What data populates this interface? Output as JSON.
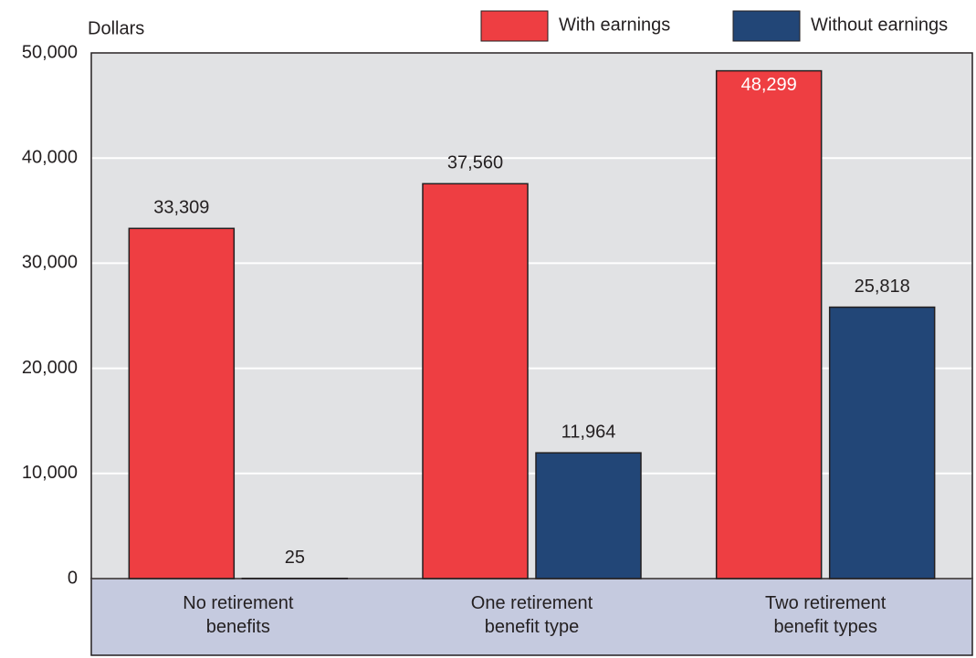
{
  "chart_data": {
    "type": "bar",
    "y_axis_label": "Dollars",
    "categories": [
      "No retirement benefits",
      "One retirement benefit type",
      "Two retirement benefit types"
    ],
    "series": [
      {
        "name": "With earnings",
        "color": "#ee3e42",
        "values": [
          33309,
          37560,
          48299
        ],
        "value_labels": [
          "33,309",
          "37,560",
          "48,299"
        ]
      },
      {
        "name": "Without earnings",
        "color": "#224677",
        "values": [
          25,
          11964,
          25818
        ],
        "value_labels": [
          "25",
          "11,964",
          "25,818"
        ]
      }
    ],
    "ylim": [
      0,
      50000
    ],
    "yticks": [
      0,
      {
        "value": 10000,
        "label": "10,000"
      },
      {
        "value": 20000,
        "label": "20,000"
      },
      {
        "value": 30000,
        "label": "30,000"
      },
      {
        "value": 40000,
        "label": "40,000"
      },
      {
        "value": 50000,
        "label": "50,000"
      }
    ],
    "grid": true,
    "legend": "top-right"
  }
}
